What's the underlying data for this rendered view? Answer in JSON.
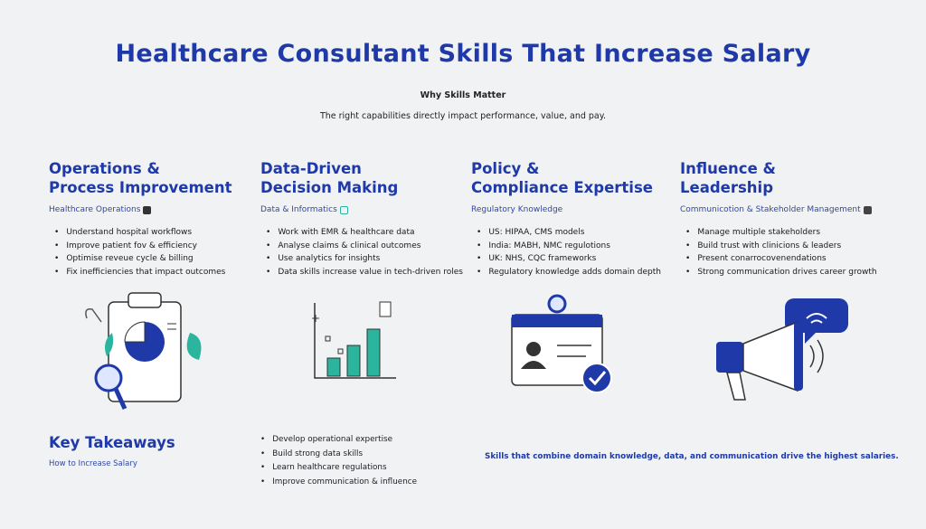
{
  "header": {
    "title": "Healthcare Consultant Skills That Increase Salary",
    "why_heading": "Why Skills Matter",
    "tagline": "The right capabilities directly impact performance, value, and pay."
  },
  "columns": [
    {
      "title_line1": "Operations &",
      "title_line2": "Process Improvement",
      "subtitle": "Healthcare Operations",
      "subtitle_icon": "medical-cross-icon",
      "bullets": [
        "Understand hospital workflows",
        "Improve patient fov & efficiency",
        "Optimise reveue cycle & billing",
        "Fix inefficiencies that impact outcomes"
      ],
      "illustration": "clipboard-pie-chart-magnifier"
    },
    {
      "title_line1": "Data-Driven",
      "title_line2": "Decision Making",
      "subtitle": "Data & Informatics",
      "subtitle_icon": "edit-icon",
      "bullets": [
        "Work with EMR & healthcare data",
        "Analyse claims & clinical outcomes",
        "Use analytics for insights",
        "Data skills increase value in tech-driven roles"
      ],
      "illustration": "bar-chart"
    },
    {
      "title_line1": "Policy &",
      "title_line2": "Compliance Expertise",
      "subtitle": "Regulatory Knowledge",
      "bullets": [
        "US: HIPAA, CMS models",
        "India: MABH, NMC regulotions",
        "UK: NHS, CQC frameworks",
        "Regulatory knowledge adds domain depth"
      ],
      "illustration": "id-badge-checkmark"
    },
    {
      "title_line1": "Influence &",
      "title_line2": "Leadership",
      "subtitle": "Communicotion & Stakeholder Management",
      "subtitle_icon": "square-icon",
      "bullets": [
        "Manage multiple stakeholders",
        "Build trust with clinicions & leaders",
        "Present conarrocovenendations",
        "Strong communication drives career growth"
      ],
      "illustration": "megaphone-speech-bubble"
    }
  ],
  "takeaways": {
    "title": "Key Takeaways",
    "subtitle": "How to Increase Salary",
    "items": [
      "Develop operational expertise",
      "Build strong data skills",
      "Learn healthcare regulations",
      "Improve communication & influence"
    ],
    "summary": "Skills that combine domain knowledge, data, and communication drive the highest salaries."
  },
  "colors": {
    "primary": "#1f3aa8",
    "accent": "#2bb59e",
    "background": "#f1f2f3"
  }
}
